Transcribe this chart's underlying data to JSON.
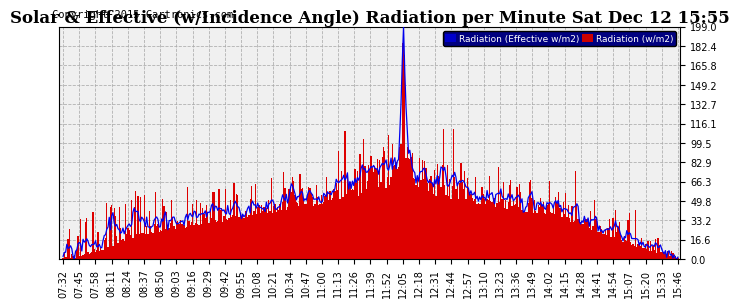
{
  "title": "Solar & Effective (w/Incidence Angle) Radiation per Minute Sat Dec 12 15:55",
  "copyright": "Copyright 2015 Cartronics.com",
  "legend_label1": "Radiation (Effective w/m2)",
  "legend_label2": "Radiation (w/m2)",
  "legend_bg1": "#0000cc",
  "legend_bg2": "#cc0000",
  "bar_color": "#dd0000",
  "line_color": "#0000ee",
  "background_color": "#ffffff",
  "plot_bg_color": "#f0f0f0",
  "grid_color": "#aaaaaa",
  "title_color": "#000000",
  "ylim": [
    0,
    199.0
  ],
  "yticks": [
    0.0,
    16.6,
    33.2,
    49.8,
    66.3,
    82.9,
    99.5,
    116.1,
    132.7,
    149.2,
    165.8,
    182.4,
    199.0
  ],
  "title_fontsize": 12,
  "copyright_fontsize": 7.5,
  "tick_fontsize": 7,
  "x_labels": [
    "07:32",
    "07:45",
    "07:58",
    "08:11",
    "08:24",
    "08:37",
    "08:50",
    "09:03",
    "09:16",
    "09:29",
    "09:42",
    "09:55",
    "10:08",
    "10:21",
    "10:34",
    "10:47",
    "11:00",
    "11:13",
    "11:26",
    "11:39",
    "11:52",
    "12:05",
    "12:18",
    "12:31",
    "12:44",
    "12:57",
    "13:10",
    "13:23",
    "13:36",
    "13:49",
    "14:02",
    "14:15",
    "14:28",
    "14:41",
    "14:54",
    "15:07",
    "15:20",
    "15:33",
    "15:46"
  ]
}
